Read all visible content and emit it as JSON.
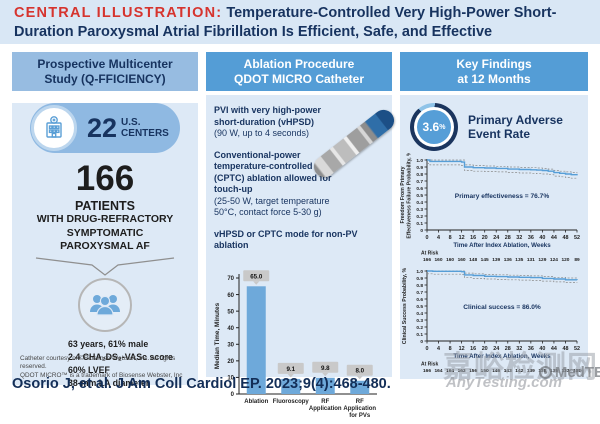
{
  "title": {
    "prefix": "CENTRAL ILLUSTRATION:",
    "text": " Temperature-Controlled Very High-Power Short-Duration Paroxysmal Atrial Fibrillation Is Efficient, Safe, and Effective"
  },
  "citation": "Osorio J, et al. J Am Coll Cardiol EP. 2023;9(4):468-480.",
  "colors": {
    "accent_red": "#d6342e",
    "navy": "#17335f",
    "header_blue": "#549dd6",
    "left_header_blue": "#97bce1",
    "panel_bg": "#dde9f6",
    "bar_blue": "#6ea9da",
    "line_blue": "#569ed7",
    "label_gray": "#c9c9c9"
  },
  "left_panel": {
    "header_line1": "Prospective Multicenter",
    "header_line2": "Study (Q-FFICIENCY)",
    "centers_value": "22",
    "centers_unit_line1": "U.S.",
    "centers_unit_line2": "CENTERS",
    "patients_value": "166",
    "patients_label": "PATIENTS",
    "sub_lines": [
      "WITH DRUG-REFRACTORY",
      "SYMPTOMATIC",
      "PAROXYSMAL AF"
    ],
    "demographics": [
      "63 years, 61% male",
      "2.4 CHA₂DS₂-VASc score",
      "60% LVEF",
      "38-mm LA diameter"
    ],
    "footnote_line1": "Catheter courtesy of ©Biosense Webster, Inc. All rights reserved.",
    "footnote_line2": "QDOT MICRO™ is a trademark of Biosense Webster, Inc"
  },
  "middle_panel": {
    "header_line1": "Ablation Procedure",
    "header_line2": "QDOT MICRO Catheter",
    "block1_bold": "PVI with very high-power short-duration (vHPSD)",
    "block1_normal": "(90 W, up to 4 seconds)",
    "block2_bold": "Conventional-power temperature-controlled (CPTC) ablation allowed for touch-up",
    "block2_normal": "(25-50 W, target temperature 50°C, contact force 5-30 g)",
    "block3_bold": "vHPSD or CPTC mode for non-PV ablation"
  },
  "right_panel": {
    "header_line1": "Key Findings",
    "header_line2": "at 12 Months",
    "adverse_rate": "3.6",
    "adverse_rate_unit": "%",
    "adverse_label_line1": "Primary Adverse",
    "adverse_label_line2": "Event Rate"
  },
  "watermark": {
    "cn_text": "嘉峪检测网",
    "site_text": "AnyTesting.com",
    "logo_text": "MedTE"
  },
  "chart_data": [
    {
      "type": "bar",
      "title": "",
      "ylabel": "Median Time, Minutes",
      "xlabel": "",
      "ylim": [
        0,
        70
      ],
      "yticks": [
        0,
        10,
        20,
        30,
        40,
        50,
        60,
        70
      ],
      "categories": [
        [
          "Ablation"
        ],
        [
          "Fluoroscopy"
        ],
        [
          "RF",
          "Application"
        ],
        [
          "RF",
          "Application",
          "for PVs"
        ]
      ],
      "values": [
        65.0,
        9.1,
        9.8,
        8.0
      ],
      "value_labels": [
        "65.0",
        "9.1",
        "9.8",
        "8.0"
      ],
      "grid": false
    },
    {
      "type": "line",
      "subtype": "kaplan-meier",
      "annotation": "Primary effectiveness = 76.7%",
      "ylabel_lines": [
        "Freedom From Primary",
        "Effectiveness Failure Probability, %"
      ],
      "xlabel": "Time After Index Ablation, Weeks",
      "xlim": [
        0,
        52
      ],
      "ylim": [
        0,
        1.0
      ],
      "xticks": [
        0,
        4,
        8,
        12,
        16,
        20,
        24,
        28,
        32,
        36,
        40,
        44,
        48,
        52
      ],
      "yticks": [
        0,
        0.1,
        0.2,
        0.3,
        0.4,
        0.5,
        0.6,
        0.7,
        0.8,
        0.9,
        1.0
      ],
      "series": [
        {
          "name": "KM estimate",
          "points": [
            [
              0,
              1.0
            ],
            [
              1,
              0.98
            ],
            [
              12,
              0.97
            ],
            [
              13,
              0.9
            ],
            [
              16,
              0.89
            ],
            [
              20,
              0.885
            ],
            [
              24,
              0.88
            ],
            [
              28,
              0.87
            ],
            [
              32,
              0.865
            ],
            [
              36,
              0.86
            ],
            [
              38,
              0.855
            ],
            [
              40,
              0.85
            ],
            [
              42,
              0.84
            ],
            [
              44,
              0.82
            ],
            [
              46,
              0.81
            ],
            [
              48,
              0.8
            ],
            [
              50,
              0.79
            ],
            [
              52,
              0.78
            ]
          ]
        }
      ],
      "ci_upper_offset": 0.03,
      "ci_lower_offset": 0.05,
      "at_risk_label": "At Risk",
      "at_risk": [
        "166",
        "160",
        "160",
        "160",
        "148",
        "145",
        "139",
        "136",
        "135",
        "131",
        "129",
        "124",
        "120",
        "89"
      ]
    },
    {
      "type": "line",
      "subtype": "kaplan-meier",
      "annotation": "Clinical success = 86.0%",
      "ylabel_lines": [
        "Clinical Success Probability, %"
      ],
      "xlabel": "Time After Index Ablation, Weeks",
      "xlim": [
        0,
        52
      ],
      "ylim": [
        0,
        1.0
      ],
      "xticks": [
        0,
        4,
        8,
        12,
        16,
        20,
        24,
        28,
        32,
        36,
        40,
        44,
        48,
        52
      ],
      "yticks": [
        0,
        0.1,
        0.2,
        0.3,
        0.4,
        0.5,
        0.6,
        0.7,
        0.8,
        0.9,
        1.0
      ],
      "series": [
        {
          "name": "KM estimate",
          "points": [
            [
              0,
              1.0
            ],
            [
              2,
              0.995
            ],
            [
              12,
              0.99
            ],
            [
              13,
              0.945
            ],
            [
              16,
              0.935
            ],
            [
              20,
              0.925
            ],
            [
              24,
              0.92
            ],
            [
              28,
              0.915
            ],
            [
              32,
              0.91
            ],
            [
              36,
              0.905
            ],
            [
              40,
              0.895
            ],
            [
              44,
              0.885
            ],
            [
              48,
              0.875
            ],
            [
              52,
              0.87
            ]
          ]
        }
      ],
      "ci_upper_offset": 0.025,
      "ci_lower_offset": 0.04,
      "at_risk_label": "At Risk",
      "at_risk": [
        "166",
        "164",
        "164",
        "163",
        "156",
        "150",
        "146",
        "143",
        "142",
        "139",
        "138",
        "135",
        "133",
        "101"
      ]
    }
  ]
}
